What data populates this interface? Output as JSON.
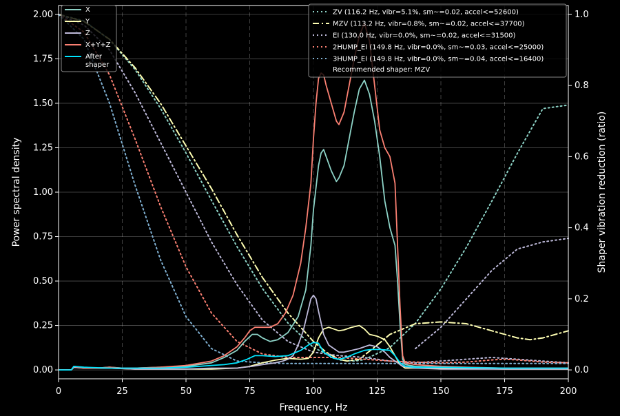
{
  "chart_data": {
    "type": "line",
    "title": "",
    "xlabel": "Frequency, Hz",
    "ylabel": "Power spectral density",
    "y2label": "Shaper vibration reduction (ratio)",
    "xlim": [
      0,
      200
    ],
    "ylim": [
      -0.05,
      2.05
    ],
    "y2lim": [
      -0.025,
      1.025
    ],
    "xticks": [
      0,
      25,
      50,
      75,
      100,
      125,
      150,
      175,
      200
    ],
    "yticks": [
      0.0,
      0.25,
      0.5,
      0.75,
      1.0,
      1.25,
      1.5,
      1.75,
      2.0
    ],
    "y2ticks": [
      0.0,
      0.2,
      0.4,
      0.6,
      0.8,
      1.0
    ],
    "grid": true,
    "background": "#000000",
    "psd_series": [
      {
        "name": "X",
        "color": "#8dd3c7",
        "x": [
          0,
          5,
          6,
          10,
          15,
          20,
          25,
          30,
          40,
          50,
          60,
          65,
          70,
          73,
          76,
          78,
          80,
          83,
          86,
          90,
          94,
          97,
          99,
          100,
          102,
          103,
          104,
          105,
          107,
          109,
          110,
          112,
          114,
          116,
          118,
          120,
          122,
          124,
          126,
          128,
          130,
          132,
          133,
          134,
          135,
          136,
          140,
          150,
          160,
          175,
          200
        ],
        "y": [
          0.0,
          0.0,
          0.02,
          0.01,
          0.01,
          0.015,
          0.01,
          0.01,
          0.015,
          0.02,
          0.04,
          0.07,
          0.11,
          0.16,
          0.2,
          0.2,
          0.18,
          0.16,
          0.17,
          0.21,
          0.3,
          0.45,
          0.7,
          0.9,
          1.15,
          1.22,
          1.24,
          1.2,
          1.12,
          1.06,
          1.08,
          1.15,
          1.3,
          1.45,
          1.58,
          1.63,
          1.55,
          1.4,
          1.2,
          0.95,
          0.8,
          0.7,
          0.5,
          0.25,
          0.06,
          0.03,
          0.02,
          0.015,
          0.01,
          0.01,
          0.01
        ]
      },
      {
        "name": "Y",
        "color": "#ffffb3",
        "x": [
          0,
          5,
          6,
          10,
          20,
          30,
          40,
          50,
          60,
          70,
          75,
          80,
          85,
          90,
          95,
          98,
          100,
          102,
          104,
          106,
          108,
          110,
          112,
          115,
          118,
          120,
          122,
          125,
          128,
          130,
          132,
          134,
          136,
          140,
          150,
          175,
          200
        ],
        "y": [
          0.0,
          0.0,
          0.015,
          0.01,
          0.01,
          0.005,
          0.005,
          0.005,
          0.005,
          0.01,
          0.02,
          0.04,
          0.055,
          0.065,
          0.06,
          0.065,
          0.1,
          0.18,
          0.23,
          0.24,
          0.23,
          0.22,
          0.225,
          0.24,
          0.25,
          0.23,
          0.2,
          0.19,
          0.17,
          0.13,
          0.08,
          0.03,
          0.01,
          0.01,
          0.01,
          0.005,
          0.005
        ]
      },
      {
        "name": "Z",
        "color": "#bebada",
        "x": [
          0,
          5,
          6,
          10,
          20,
          30,
          40,
          50,
          60,
          70,
          76,
          80,
          85,
          88,
          90,
          92,
          94,
          96,
          98,
          99,
          100,
          101,
          102,
          104,
          106,
          108,
          110,
          112,
          115,
          118,
          120,
          122,
          125,
          128,
          130,
          133,
          135,
          140,
          150,
          175,
          200
        ],
        "y": [
          0.0,
          0.0,
          0.015,
          0.01,
          0.01,
          0.005,
          0.005,
          0.005,
          0.01,
          0.01,
          0.02,
          0.03,
          0.04,
          0.05,
          0.06,
          0.08,
          0.14,
          0.22,
          0.34,
          0.4,
          0.42,
          0.4,
          0.33,
          0.2,
          0.14,
          0.12,
          0.1,
          0.1,
          0.11,
          0.12,
          0.13,
          0.14,
          0.13,
          0.1,
          0.07,
          0.04,
          0.02,
          0.01,
          0.005,
          0.005,
          0.005
        ]
      },
      {
        "name": "X+Y+Z",
        "color": "#fb8072",
        "x": [
          0,
          5,
          6,
          10,
          15,
          20,
          25,
          30,
          40,
          50,
          60,
          65,
          70,
          73,
          75,
          77,
          80,
          83,
          86,
          89,
          92,
          95,
          97,
          99,
          100,
          101,
          102,
          103,
          104,
          105,
          107,
          109,
          110,
          112,
          114,
          116,
          118,
          120,
          122,
          124,
          126,
          128,
          130,
          132,
          133,
          134,
          135,
          136,
          140,
          150,
          160,
          175,
          200
        ],
        "y": [
          0.0,
          0.0,
          0.02,
          0.01,
          0.01,
          0.015,
          0.01,
          0.01,
          0.015,
          0.025,
          0.05,
          0.08,
          0.13,
          0.18,
          0.22,
          0.24,
          0.24,
          0.24,
          0.26,
          0.32,
          0.42,
          0.6,
          0.8,
          1.05,
          1.3,
          1.5,
          1.64,
          1.67,
          1.66,
          1.6,
          1.5,
          1.4,
          1.38,
          1.45,
          1.6,
          1.75,
          1.88,
          1.95,
          1.85,
          1.6,
          1.35,
          1.25,
          1.2,
          1.05,
          0.7,
          0.35,
          0.08,
          0.04,
          0.03,
          0.02,
          0.015,
          0.01,
          0.01
        ]
      },
      {
        "name": "After\nshaper",
        "color": "#00e5ff",
        "x": [
          0,
          5,
          6,
          10,
          20,
          30,
          40,
          50,
          60,
          65,
          70,
          74,
          77,
          80,
          85,
          90,
          95,
          98,
          100,
          102,
          104,
          106,
          108,
          110,
          113,
          116,
          118,
          120,
          123,
          126,
          130,
          132,
          134,
          136,
          140,
          150,
          175,
          200
        ],
        "y": [
          0.0,
          0.0,
          0.02,
          0.015,
          0.01,
          0.01,
          0.01,
          0.015,
          0.025,
          0.03,
          0.04,
          0.06,
          0.08,
          0.08,
          0.075,
          0.08,
          0.11,
          0.14,
          0.155,
          0.15,
          0.1,
          0.08,
          0.065,
          0.06,
          0.07,
          0.09,
          0.1,
          0.11,
          0.115,
          0.115,
          0.11,
          0.08,
          0.04,
          0.02,
          0.015,
          0.015,
          0.01,
          0.01
        ]
      }
    ],
    "shaper_series": [
      {
        "name": "ZV (116.2 Hz, vibr=5.1%, sm~=0.02, accel<=52600)",
        "color": "#8dd3c7",
        "style": "dotted",
        "x": [
          0,
          10,
          20,
          30,
          40,
          50,
          60,
          70,
          80,
          90,
          100,
          110,
          116.2,
          120,
          130,
          140,
          150,
          160,
          170,
          180,
          190,
          200
        ],
        "y": [
          1.0,
          0.982,
          0.929,
          0.845,
          0.736,
          0.61,
          0.477,
          0.347,
          0.229,
          0.132,
          0.063,
          0.028,
          0.025,
          0.029,
          0.063,
          0.131,
          0.228,
          0.345,
          0.475,
          0.609,
          0.735,
          0.745
        ]
      },
      {
        "name": "MZV (113.2 Hz, vibr=0.8%, sm~=0.02, accel<=37700)",
        "color": "#ffffb3",
        "style": "dashdot",
        "x": [
          0,
          10,
          20,
          30,
          40,
          50,
          60,
          70,
          80,
          90,
          100,
          105,
          110,
          113.2,
          118,
          125,
          130,
          140,
          150,
          160,
          170,
          180,
          185,
          190,
          200
        ],
        "y": [
          1.0,
          0.98,
          0.93,
          0.85,
          0.75,
          0.63,
          0.51,
          0.38,
          0.26,
          0.16,
          0.08,
          0.05,
          0.03,
          0.025,
          0.03,
          0.07,
          0.1,
          0.13,
          0.135,
          0.13,
          0.11,
          0.09,
          0.085,
          0.09,
          0.11
        ]
      },
      {
        "name": "EI (130.0 Hz, vibr=0.0%, sm~=0.02, accel<=31500)",
        "color": "#bebada",
        "style": "dotted",
        "x": [
          0,
          10,
          20,
          30,
          40,
          50,
          60,
          70,
          80,
          90,
          100,
          110,
          120,
          125,
          130,
          140,
          150,
          160,
          170,
          180,
          190,
          200
        ],
        "y": [
          1.0,
          0.97,
          0.9,
          0.78,
          0.64,
          0.5,
          0.36,
          0.24,
          0.14,
          0.08,
          0.05,
          0.04,
          0.035,
          0.03,
          0.025,
          0.02,
          0.025,
          0.03,
          0.035,
          0.03,
          0.025,
          0.02
        ]
      },
      {
        "name": "2HUMP_EI (149.8 Hz, vibr=0.0%, sm~=0.03, accel<=25000)",
        "color": "#fb8072",
        "style": "dotted",
        "x": [
          0,
          10,
          20,
          30,
          40,
          50,
          60,
          70,
          80,
          90,
          100,
          110,
          120,
          130,
          140,
          150,
          160,
          170,
          175,
          180,
          190,
          200
        ],
        "y": [
          1.0,
          0.95,
          0.83,
          0.65,
          0.46,
          0.29,
          0.16,
          0.08,
          0.045,
          0.035,
          0.035,
          0.035,
          0.03,
          0.025,
          0.022,
          0.02,
          0.022,
          0.028,
          0.03,
          0.028,
          0.022,
          0.02
        ]
      },
      {
        "name": "3HUMP_EI (149.8 Hz, vibr=0.0%, sm~=0.04, accel<=16400)",
        "color": "#80b1d3",
        "style": "dotted",
        "x": [
          0,
          10,
          20,
          30,
          40,
          50,
          60,
          70,
          80,
          90,
          100,
          110,
          120,
          130,
          140,
          150,
          160,
          170,
          180,
          190,
          200
        ],
        "y": [
          1.0,
          0.93,
          0.75,
          0.52,
          0.31,
          0.15,
          0.06,
          0.025,
          0.02,
          0.018,
          0.018,
          0.018,
          0.018,
          0.018,
          0.018,
          0.018,
          0.018,
          0.018,
          0.018,
          0.018,
          0.018
        ]
      },
      {
        "name": "Part dotted",
        "color": "#bebada",
        "style": "dotted",
        "x": [
          140,
          150,
          160,
          170,
          180,
          190,
          200
        ],
        "y": [
          0.06,
          0.12,
          0.2,
          0.28,
          0.34,
          0.36,
          0.37
        ]
      }
    ],
    "legend_psd": [
      "X",
      "Y",
      "Z",
      "X+Y+Z",
      "After\nshaper"
    ],
    "legend_shaper": [
      "ZV (116.2 Hz, vibr=5.1%, sm~=0.02, accel<=52600)",
      "MZV (113.2 Hz, vibr=0.8%, sm~=0.02, accel<=37700)",
      "EI (130.0 Hz, vibr=0.0%, sm~=0.02, accel<=31500)",
      "2HUMP_EI (149.8 Hz, vibr=0.0%, sm~=0.03, accel<=25000)",
      "3HUMP_EI (149.8 Hz, vibr=0.0%, sm~=0.04, accel<=16400)"
    ],
    "recommended": "Recommended shaper: MZV",
    "legend_psd_placement": "top-left",
    "legend_shaper_placement": "top-right"
  }
}
